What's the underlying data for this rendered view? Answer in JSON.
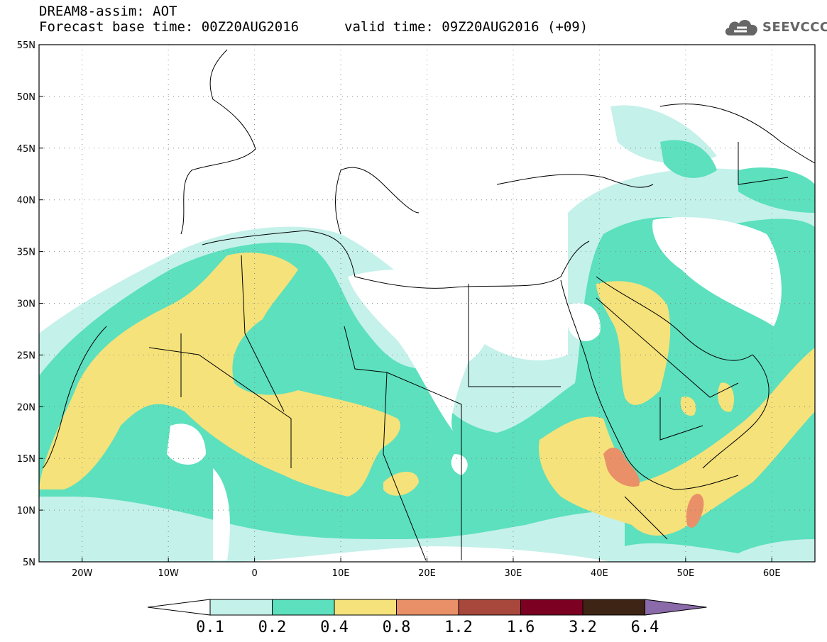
{
  "header": {
    "title": "DREAM8-assim: AOT",
    "base_time": "Forecast base time: 00Z20AUG2016",
    "valid_time": "valid time: 09Z20AUG2016 (+09)"
  },
  "logo": {
    "text": "SEEVCCC",
    "icon": "cloud-icon"
  },
  "map": {
    "lat_labels": [
      "55N",
      "50N",
      "45N",
      "40N",
      "35N",
      "30N",
      "25N",
      "20N",
      "15N",
      "10N",
      "5N"
    ],
    "lon_labels": [
      "20W",
      "10W",
      "0",
      "10E",
      "20E",
      "30E",
      "40E",
      "50E",
      "60E"
    ],
    "lon_range": [
      -25,
      65
    ],
    "lat_range": [
      5,
      55
    ],
    "grid": "dotted"
  },
  "colorbar": {
    "labels": [
      "0.1",
      "0.2",
      "0.4",
      "0.8",
      "1.2",
      "1.6",
      "3.2",
      "6.4"
    ],
    "colors": [
      "#c4f1ea",
      "#5ce0be",
      "#f5e27a",
      "#e99068",
      "#a8473c",
      "#7b0022",
      "#3d2415",
      "#8a6aa8"
    ]
  },
  "chart_data": {
    "type": "heatmap",
    "variable": "AOT",
    "levels": [
      0.1,
      0.2,
      0.4,
      0.8,
      1.2,
      1.6,
      3.2,
      6.4
    ],
    "xlim": [
      -25,
      65
    ],
    "ylim": [
      5,
      55
    ],
    "x_ticks": [
      -20,
      -10,
      0,
      10,
      20,
      30,
      40,
      50,
      60
    ],
    "y_ticks": [
      55,
      50,
      45,
      40,
      35,
      30,
      25,
      20,
      15,
      10,
      5
    ]
  }
}
